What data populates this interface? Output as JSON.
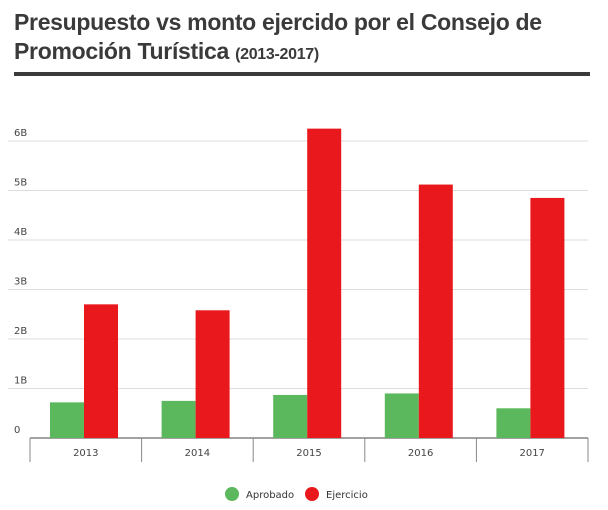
{
  "title": {
    "main": "Presupuesto vs monto ejercido por el Consejo de Promoción Turística",
    "sub": "(2013-2017)"
  },
  "chart_data": {
    "type": "bar",
    "categories": [
      "2013",
      "2014",
      "2015",
      "2016",
      "2017"
    ],
    "series": [
      {
        "name": "Aprobado",
        "color": "#5cb85c",
        "values": [
          0.72,
          0.75,
          0.87,
          0.9,
          0.6
        ]
      },
      {
        "name": "Ejercicio",
        "color": "#e8181c",
        "values": [
          2.7,
          2.58,
          6.25,
          5.12,
          4.85
        ]
      }
    ],
    "y_ticks": [
      {
        "value": 0,
        "label": "0"
      },
      {
        "value": 1,
        "label": "1B"
      },
      {
        "value": 2,
        "label": "2B"
      },
      {
        "value": 3,
        "label": "3B"
      },
      {
        "value": 4,
        "label": "4B"
      },
      {
        "value": 5,
        "label": "5B"
      },
      {
        "value": 6,
        "label": "6B"
      }
    ],
    "ylim": [
      0,
      6.5
    ],
    "grid": true,
    "legend": "bottom-center"
  }
}
